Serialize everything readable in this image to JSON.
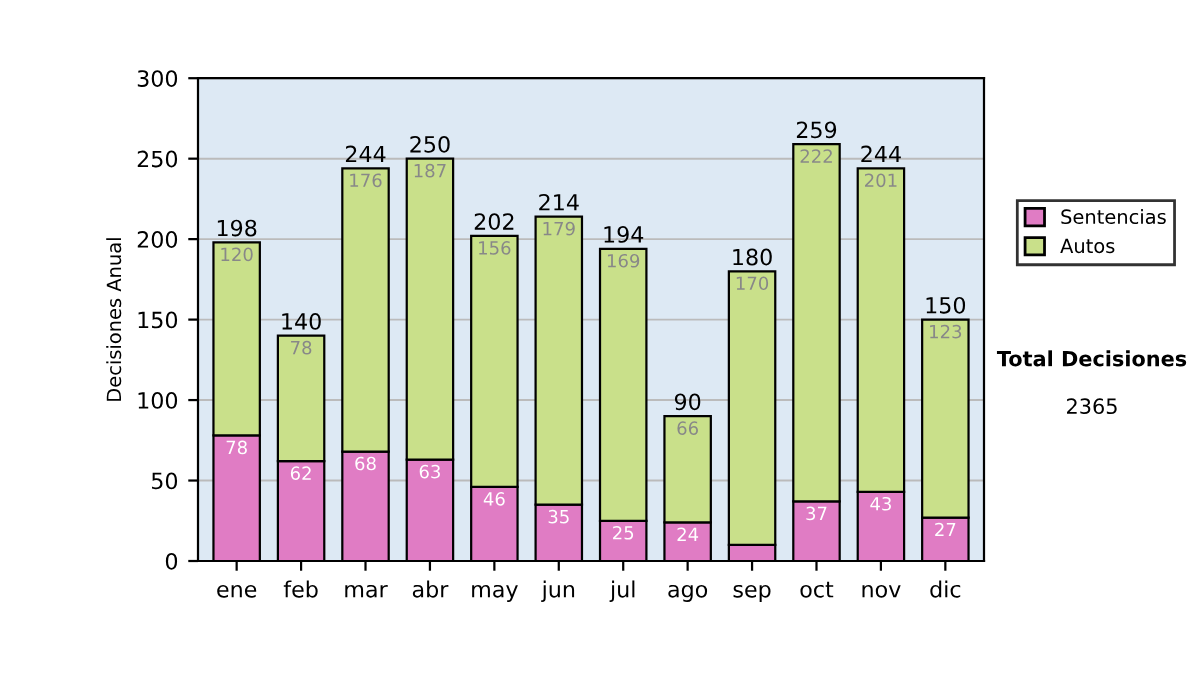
{
  "chart_data": {
    "type": "bar",
    "ylabel": "Decisiones Anual",
    "categories": [
      "ene",
      "feb",
      "mar",
      "abr",
      "may",
      "jun",
      "jul",
      "ago",
      "sep",
      "oct",
      "nov",
      "dic"
    ],
    "stacked": true,
    "series": [
      {
        "name": "Sentencias",
        "color": "#e07cc4",
        "values": [
          78,
          62,
          68,
          63,
          46,
          35,
          25,
          24,
          10,
          37,
          43,
          27
        ],
        "value_labels": [
          "78",
          "62",
          "68",
          "63",
          "46",
          "35",
          "25",
          "24",
          null,
          "37",
          "43",
          "27"
        ]
      },
      {
        "name": "Autos",
        "color": "#c9e08a",
        "values": [
          120,
          78,
          176,
          187,
          156,
          179,
          169,
          66,
          170,
          222,
          201,
          123
        ],
        "value_labels": [
          "120",
          "78",
          "176",
          "187",
          "156",
          "179",
          "169",
          "66",
          "170",
          "222",
          "201",
          "123"
        ]
      }
    ],
    "totals": [
      "198",
      "140",
      "244",
      "250",
      "202",
      "214",
      "194",
      "90",
      "180",
      "259",
      "244",
      "150"
    ],
    "ylim": [
      0,
      300
    ],
    "yticks": [
      0,
      50,
      100,
      150,
      200,
      250,
      300
    ],
    "grid": "y",
    "legend": "right",
    "annotations": [
      "Total Decisiones",
      "2365"
    ]
  }
}
